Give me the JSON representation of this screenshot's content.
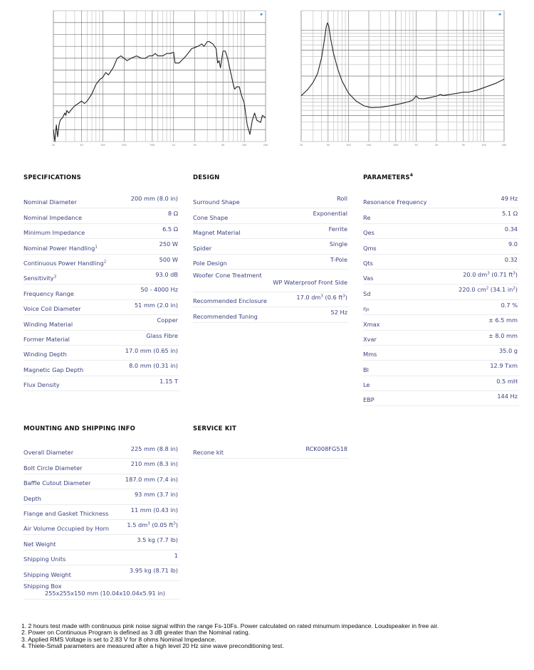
{
  "charts": {
    "frequency_response": {
      "type": "line",
      "x_scale": "log",
      "xlim": [
        20,
        20000
      ],
      "ylim": [
        55,
        110
      ],
      "grid": true,
      "x_ticks": [
        "20",
        "50",
        "100",
        "200",
        "500",
        "1k",
        "2k",
        "5k",
        "10k",
        "20k"
      ],
      "line_color": "#222222",
      "points": [
        [
          20,
          60
        ],
        [
          21,
          55
        ],
        [
          22,
          62
        ],
        [
          23,
          57
        ],
        [
          24,
          62
        ],
        [
          25,
          64
        ],
        [
          27,
          65
        ],
        [
          29,
          67
        ],
        [
          30,
          66
        ],
        [
          31,
          68
        ],
        [
          33,
          67
        ],
        [
          35,
          68
        ],
        [
          40,
          70
        ],
        [
          45,
          71
        ],
        [
          50,
          72
        ],
        [
          55,
          71
        ],
        [
          60,
          72
        ],
        [
          70,
          75
        ],
        [
          80,
          79
        ],
        [
          90,
          81
        ],
        [
          100,
          82
        ],
        [
          110,
          84
        ],
        [
          120,
          83
        ],
        [
          140,
          86
        ],
        [
          160,
          90
        ],
        [
          180,
          91
        ],
        [
          200,
          90
        ],
        [
          220,
          89
        ],
        [
          250,
          90
        ],
        [
          300,
          91
        ],
        [
          350,
          90
        ],
        [
          400,
          90
        ],
        [
          450,
          91
        ],
        [
          500,
          91
        ],
        [
          550,
          92
        ],
        [
          600,
          91
        ],
        [
          700,
          91
        ],
        [
          800,
          92
        ],
        [
          900,
          92
        ],
        [
          1000,
          92.5
        ],
        [
          1050,
          88
        ],
        [
          1200,
          88
        ],
        [
          1500,
          91
        ],
        [
          1800,
          94
        ],
        [
          2200,
          95
        ],
        [
          2500,
          96
        ],
        [
          2700,
          95
        ],
        [
          3000,
          97
        ],
        [
          3200,
          97
        ],
        [
          3600,
          96
        ],
        [
          4000,
          94
        ],
        [
          4200,
          88
        ],
        [
          4400,
          89
        ],
        [
          4600,
          86
        ],
        [
          5000,
          93
        ],
        [
          5400,
          93
        ],
        [
          5800,
          90
        ],
        [
          6200,
          86
        ],
        [
          7000,
          79
        ],
        [
          7300,
          77
        ],
        [
          7800,
          78
        ],
        [
          8500,
          78
        ],
        [
          9000,
          75
        ],
        [
          10000,
          71
        ],
        [
          11000,
          62
        ],
        [
          12000,
          58
        ],
        [
          13000,
          64
        ],
        [
          14000,
          67
        ],
        [
          15000,
          64
        ],
        [
          17000,
          63
        ],
        [
          18000,
          66
        ],
        [
          20000,
          65
        ]
      ]
    },
    "impedance": {
      "type": "line",
      "x_scale": "log",
      "y_scale": "log",
      "xlim": [
        20,
        20000
      ],
      "ylim": [
        2,
        200
      ],
      "grid": true,
      "x_ticks": [
        "20",
        "50",
        "100",
        "200",
        "500",
        "1k",
        "2k",
        "5k",
        "10k",
        "20k"
      ],
      "line_color": "#222222",
      "points": [
        [
          20,
          10
        ],
        [
          25,
          12.5
        ],
        [
          30,
          16
        ],
        [
          35,
          22
        ],
        [
          40,
          38
        ],
        [
          44,
          70
        ],
        [
          47,
          115
        ],
        [
          49,
          130
        ],
        [
          51,
          118
        ],
        [
          55,
          72
        ],
        [
          60,
          45
        ],
        [
          70,
          25
        ],
        [
          80,
          17
        ],
        [
          100,
          11
        ],
        [
          130,
          8.3
        ],
        [
          170,
          7
        ],
        [
          220,
          6.6
        ],
        [
          300,
          6.7
        ],
        [
          400,
          7
        ],
        [
          600,
          7.6
        ],
        [
          800,
          8.2
        ],
        [
          900,
          8.7
        ],
        [
          1000,
          10
        ],
        [
          1100,
          9.1
        ],
        [
          1300,
          9
        ],
        [
          1600,
          9.4
        ],
        [
          2000,
          9.9
        ],
        [
          2300,
          10.5
        ],
        [
          2500,
          10.1
        ],
        [
          3000,
          10.4
        ],
        [
          4000,
          10.9
        ],
        [
          5000,
          11.4
        ],
        [
          6000,
          11.4
        ],
        [
          8000,
          12.2
        ],
        [
          10000,
          13.3
        ],
        [
          15000,
          15.5
        ],
        [
          20000,
          18
        ]
      ]
    }
  },
  "specifications": {
    "title": "SPECIFICATIONS",
    "rows": [
      {
        "label": "Nominal Diameter",
        "value": "200 mm (8.0 in)"
      },
      {
        "label": "Nominal Impedance",
        "value": "8 Ω"
      },
      {
        "label": "Minimum Impedance",
        "value": "6.5 Ω"
      },
      {
        "label": "Nominal Power Handling",
        "sup": "1",
        "value": "250 W"
      },
      {
        "label": "Continuous Power Handling",
        "sup": "2",
        "value": "500 W"
      },
      {
        "label": "Sensitivity",
        "sup": "3",
        "value": "93.0 dB"
      },
      {
        "label": "Frequency Range",
        "value": "50 - 4000 Hz"
      },
      {
        "label": "Voice Coil Diameter",
        "value": "51 mm (2.0 in)"
      },
      {
        "label": "Winding Material",
        "value": "Copper"
      },
      {
        "label": "Former Material",
        "value": "Glass Fibre"
      },
      {
        "label": "Winding Depth",
        "value": "17.0 mm (0.65 in)"
      },
      {
        "label": "Magnetic Gap Depth",
        "value": "8.0 mm (0.31 in)"
      },
      {
        "label": "Flux Density",
        "value": "1.15 T"
      }
    ]
  },
  "design": {
    "title": "DESIGN",
    "rows": [
      {
        "label": "Surround Shape",
        "value": "Roll"
      },
      {
        "label": "Cone Shape",
        "value": "Exponential"
      },
      {
        "label": "Magnet Material",
        "value": "Ferrite"
      },
      {
        "label": "Spider",
        "value": "Single"
      },
      {
        "label": "Pole Design",
        "value": "T-Pole"
      },
      {
        "label": "Woofer Cone Treatment",
        "value": "WP Waterproof Front Side",
        "tall": true
      },
      {
        "label": "Recommended Enclosure",
        "value": "17.0 dm",
        "sup_a": "3",
        "value_b": " (0.6 ft",
        "sup_b": "3",
        "value_c": ")"
      },
      {
        "label": "Recommended Tuning",
        "value": "52 Hz"
      }
    ]
  },
  "parameters": {
    "title": "PARAMETERS",
    "title_sup": "4",
    "rows": [
      {
        "label": "Resonance Frequency",
        "value": "49 Hz"
      },
      {
        "label": "Re",
        "value": "5.1 Ω"
      },
      {
        "label": "Qes",
        "value": "0.34"
      },
      {
        "label": "Qms",
        "value": "9.0"
      },
      {
        "label": "Qts",
        "value": "0.32"
      },
      {
        "label": "Vas",
        "value": "20.0 dm",
        "sup_a": "3",
        "value_b": " (0.71 ft",
        "sup_b": "3",
        "value_c": ")"
      },
      {
        "label": "Sd",
        "value": "220.0 cm",
        "sup_a": "2",
        "value_b": " (34.1 in",
        "sup_b": "2",
        "value_c": ")"
      },
      {
        "label": "η₀",
        "value": "0.7 %"
      },
      {
        "label": "Xmax",
        "value": "± 6.5 mm"
      },
      {
        "label": "Xvar",
        "value": "± 8.0 mm"
      },
      {
        "label": "Mms",
        "value": "35.0 g"
      },
      {
        "label": "Bl",
        "value": "12.9 Txm"
      },
      {
        "label": "Le",
        "value": "0.5 mH"
      },
      {
        "label": "EBP",
        "value": "144 Hz"
      }
    ]
  },
  "mounting": {
    "title": "MOUNTING AND SHIPPING INFO",
    "rows": [
      {
        "label": "Overall Diameter",
        "value": "225 mm (8.8 in)"
      },
      {
        "label": "Bolt Circle Diameter",
        "value": "210 mm (8.3 in)"
      },
      {
        "label": "Baffle Cutout Diameter",
        "value": "187.0 mm (7.4 in)"
      },
      {
        "label": "Depth",
        "value": "93 mm (3.7 in)"
      },
      {
        "label": "Flange and Gasket Thickness",
        "value": "11 mm (0.43 in)"
      },
      {
        "label": "Air Volume Occupied by Horn",
        "value": "1.5 dm",
        "sup_a": "3",
        "value_b": " (0.05 ft",
        "sup_b": "3",
        "value_c": ")"
      },
      {
        "label": "Net Weight",
        "value": "3.5 kg (7.7 lb)"
      },
      {
        "label": "Shipping Units",
        "value": "1"
      },
      {
        "label": "Shipping Weight",
        "value": "3.95 kg (8.71 lb)"
      },
      {
        "label": "Shipping Box",
        "value": "255x255x150 mm (10.04x10.04x5.91 in)",
        "box": true
      }
    ]
  },
  "service_kit": {
    "title": "SERVICE KIT",
    "rows": [
      {
        "label": "Recone kit",
        "value": "RCK008FG518"
      }
    ]
  },
  "footnotes": [
    "1.  2 hours test made with continuous pink noise signal within the range Fs-10Fs. Power calculated on rated minumum impedance. Loudspeaker in free air.",
    "2.  Power on Continuous Program is defined as 3 dB greater than the Nominal rating.",
    "3.  Applied RMS Voltage is set to 2.83 V for 8 ohms Nominal Impedance.",
    "4.  Thiele-Small parameters are measured after a high level 20 Hz sine wave preconditioning test."
  ]
}
